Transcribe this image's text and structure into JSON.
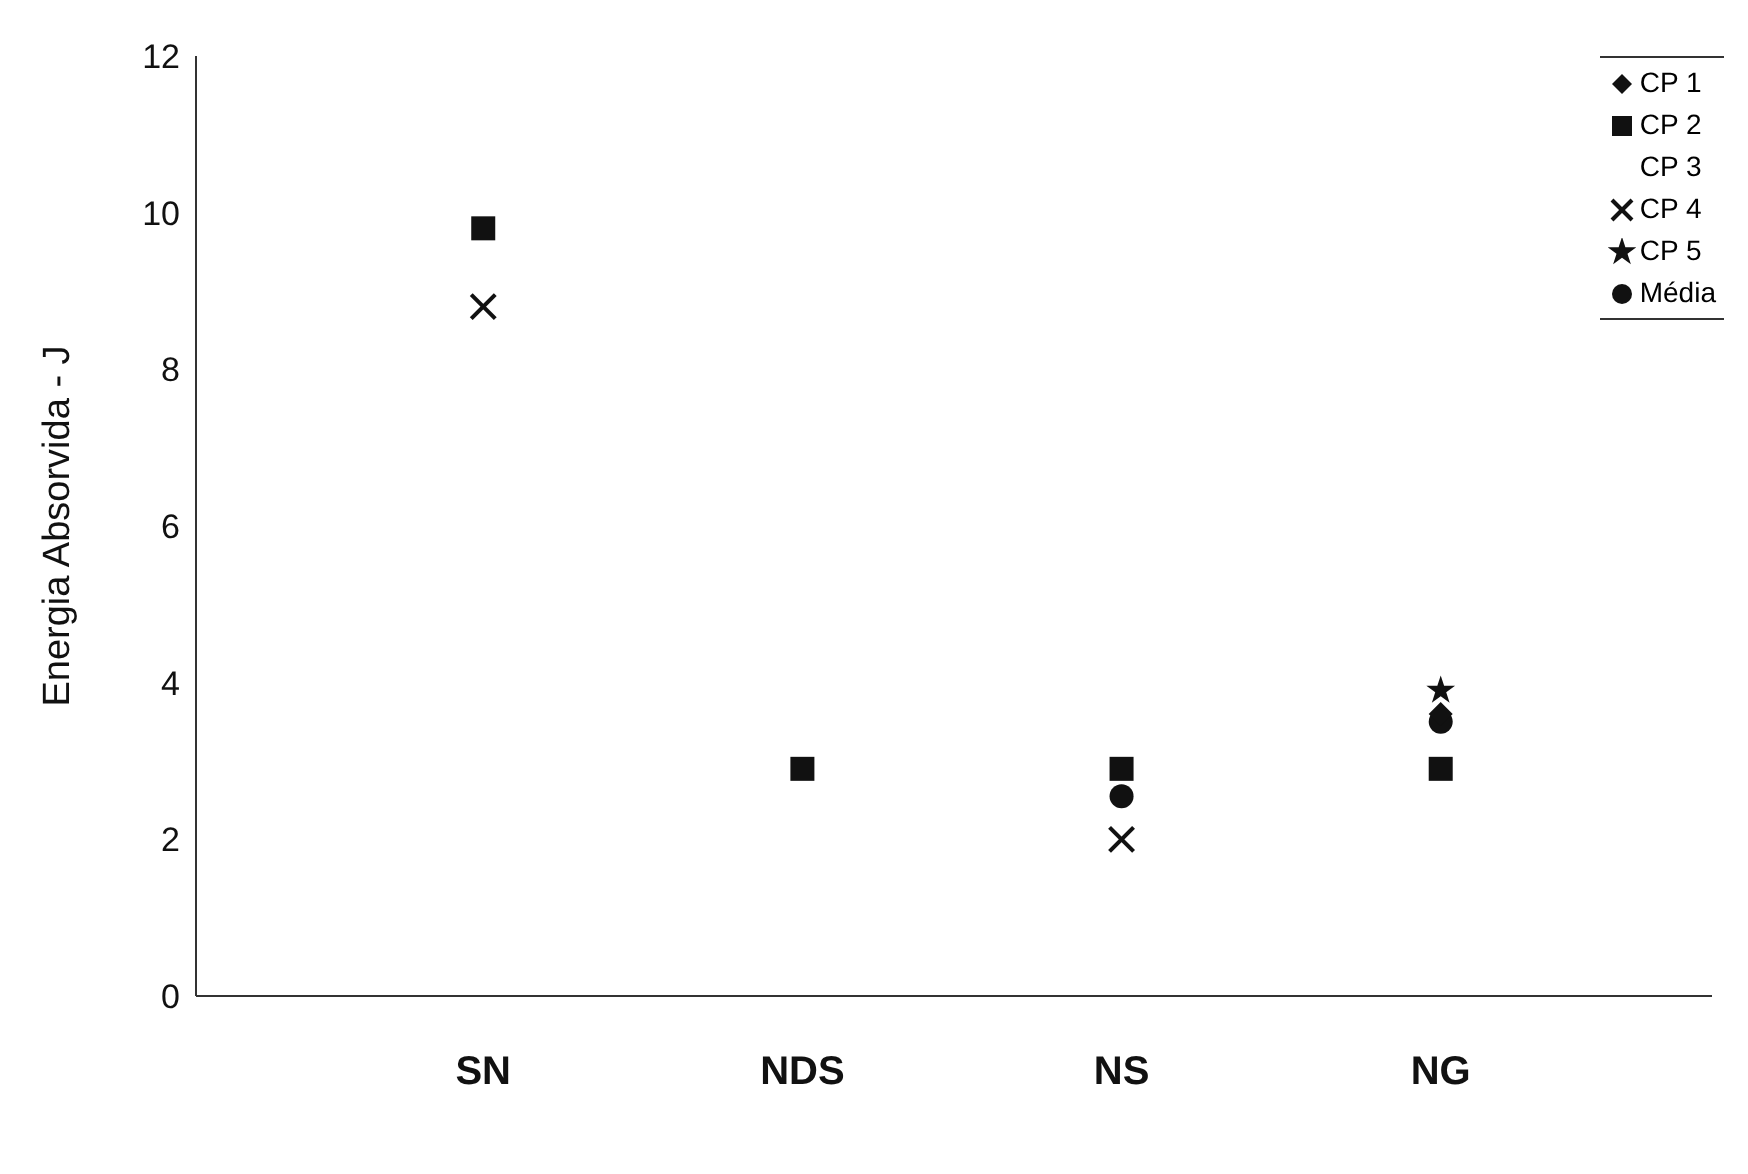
{
  "chart_data": {
    "type": "scatter",
    "ylabel": "Energia Absorvida - J",
    "categories": [
      "SN",
      "NDS",
      "NS",
      "NG"
    ],
    "ylim": [
      0,
      12
    ],
    "yticks": [
      0,
      2,
      4,
      6,
      8,
      10,
      12
    ],
    "grid": false,
    "legend": "top right",
    "series": [
      {
        "name": "CP 1",
        "color": "#111111",
        "marker": "diamond",
        "values": [
          null,
          null,
          null,
          3.6
        ]
      },
      {
        "name": "CP 2",
        "color": "#111111",
        "marker": "square",
        "values": [
          9.8,
          2.9,
          2.9,
          2.9
        ]
      },
      {
        "name": "CP 3",
        "color": "#111111",
        "marker": "none",
        "values": [
          null,
          null,
          null,
          null
        ]
      },
      {
        "name": "CP 4",
        "color": "#111111",
        "marker": "cross",
        "values": [
          8.8,
          null,
          2.0,
          null
        ]
      },
      {
        "name": "CP 5",
        "color": "#111111",
        "marker": "star",
        "values": [
          null,
          null,
          null,
          3.9
        ]
      },
      {
        "name": "Média",
        "color": "#111111",
        "marker": "circle",
        "values": [
          null,
          null,
          2.55,
          3.5
        ]
      }
    ]
  }
}
